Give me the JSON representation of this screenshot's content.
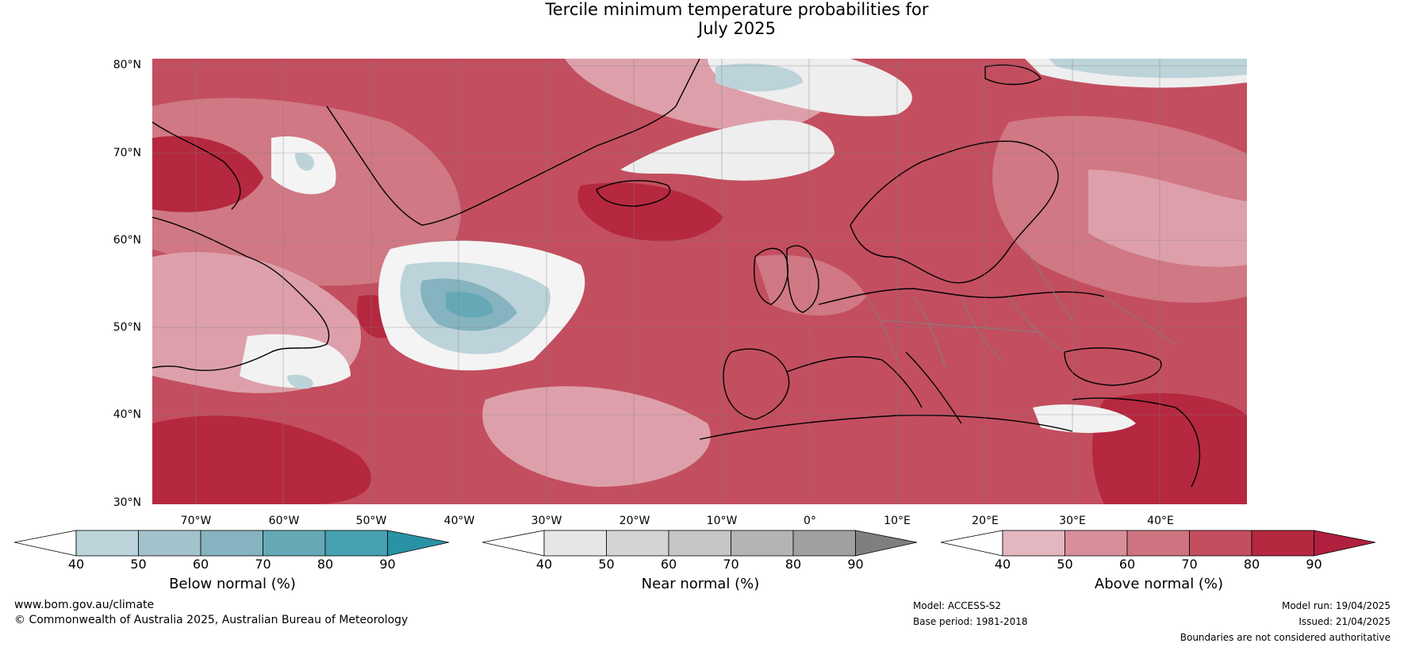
{
  "title_line1": "Tercile minimum temperature probabilities for",
  "title_line2": "July 2025",
  "lat_labels": [
    "80°N",
    "70°N",
    "60°N",
    "50°N",
    "40°N",
    "30°N"
  ],
  "lon_labels": [
    "70°W",
    "60°W",
    "50°W",
    "40°W",
    "30°W",
    "20°W",
    "10°W",
    "0°",
    "10°E",
    "20°E",
    "30°E",
    "40°E"
  ],
  "colorbars": [
    {
      "label": "Below normal (%)",
      "ticks": [
        "40",
        "50",
        "60",
        "70",
        "80",
        "90"
      ],
      "colors": [
        "#ffffff",
        "#bcd3da",
        "#a3c3cc",
        "#85b3bf",
        "#65a9b6",
        "#46a1b2",
        "#2a92a6"
      ]
    },
    {
      "label": "Near normal (%)",
      "ticks": [
        "40",
        "50",
        "60",
        "70",
        "80",
        "90"
      ],
      "colors": [
        "#ffffff",
        "#e6e6e6",
        "#d4d4d4",
        "#c6c6c6",
        "#b4b4b4",
        "#a0a0a0",
        "#7f7f7f"
      ]
    },
    {
      "label": "Above normal (%)",
      "ticks": [
        "40",
        "50",
        "60",
        "70",
        "80",
        "90"
      ],
      "colors": [
        "#ffffff",
        "#e4b6bf",
        "#d98f9a",
        "#cd7480",
        "#c34e5f",
        "#b5283f",
        "#b11f3e"
      ]
    }
  ],
  "footer": {
    "website": "www.bom.gov.au/climate",
    "copyright": "© Commonwealth of Australia 2025, Australian Bureau of Meteorology",
    "model": "Model: ACCESS-S2",
    "base_period": "Base period: 1981-2018",
    "model_run": "Model run: 19/04/2025",
    "issued": "Issued: 21/04/2025",
    "disclaimer": "Boundaries are not considered authoritative"
  },
  "map": {
    "lat_range": [
      30,
      81
    ],
    "lon_range": [
      -75,
      50
    ],
    "colors": {
      "above_light": "#dda0aa",
      "above_mid": "#d07884",
      "above_strong": "#c34e5f",
      "above_vstrong": "#b5283f",
      "below_light": "#bcd3da",
      "below_mid": "#85b3bf",
      "below_strong": "#65a9b6",
      "near": "#e6e6e6",
      "coast": "#000000",
      "border": "#808080"
    }
  }
}
